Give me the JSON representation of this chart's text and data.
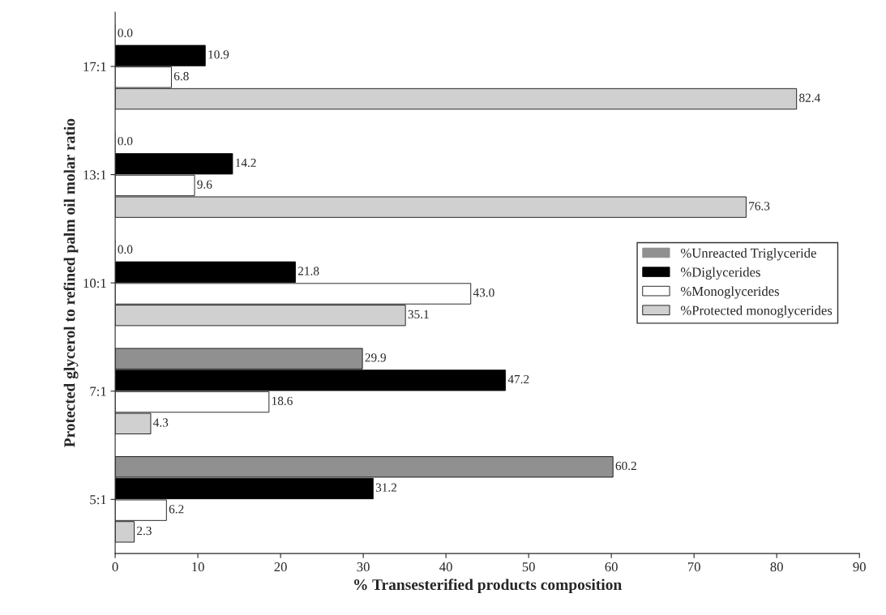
{
  "chart_data": {
    "type": "bar",
    "orientation": "horizontal",
    "categories": [
      "17:1",
      "13:1",
      "10:1",
      "7:1",
      "5:1"
    ],
    "xlabel": "% Transesterified products composition",
    "ylabel": "Protected glycerol to refined palm oil molar ratio",
    "xlim": [
      0,
      90
    ],
    "xticks": [
      0,
      10,
      20,
      30,
      40,
      50,
      60,
      70,
      80,
      90
    ],
    "series": [
      {
        "name": "%Unreacted Triglyceride",
        "color": "#909090",
        "values": [
          0,
          0,
          0,
          29.9,
          60.2
        ],
        "value_labels": [
          "0.0",
          "0.0",
          "0.0",
          "29.9",
          "60.2"
        ]
      },
      {
        "name": "%Diglycerides",
        "color": "#000000",
        "values": [
          10.9,
          14.2,
          21.8,
          47.2,
          31.2
        ],
        "value_labels": [
          "10.9",
          "14.2",
          "21.8",
          "47.2",
          "31.2"
        ]
      },
      {
        "name": "%Monoglycerides",
        "color": "#ffffff",
        "values": [
          6.8,
          9.6,
          43,
          18.6,
          6.2
        ],
        "value_labels": [
          "6.8",
          "9.6",
          "43.0",
          "18.6",
          "6.2"
        ]
      },
      {
        "name": "%Protected monoglycerides",
        "color": "#d0d0d0",
        "values": [
          82.4,
          76.3,
          35.1,
          4.3,
          2.3
        ],
        "value_labels": [
          "82.4",
          "76.3",
          "35.1",
          "4.3",
          "2.3"
        ]
      }
    ],
    "grid": false,
    "legend": "right"
  }
}
